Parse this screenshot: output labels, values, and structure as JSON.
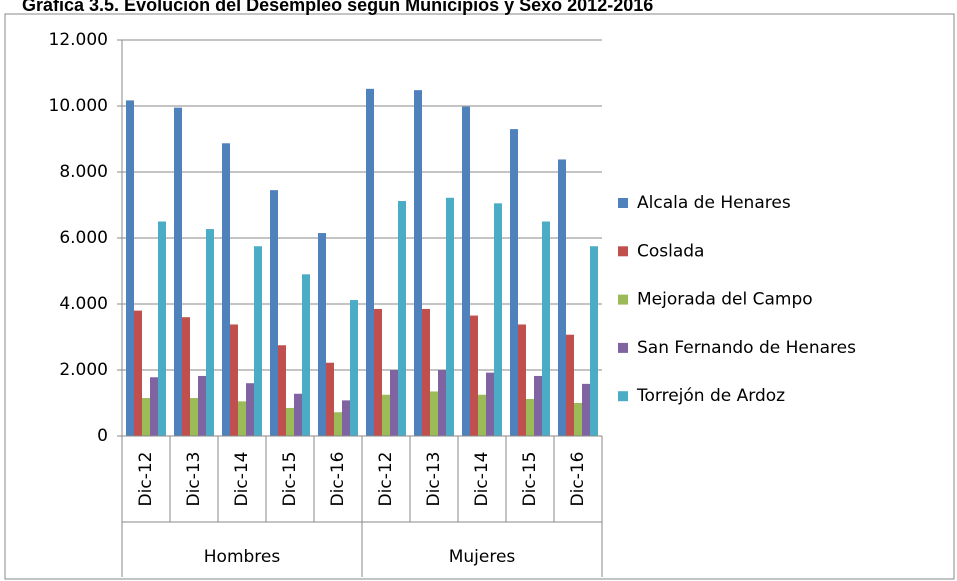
{
  "chart_data": {
    "type": "bar",
    "title": "Gráfica 3.5. Evolución del Desempleo según Municipios y Sexo 2012-2016",
    "categories": [
      "Dic-12",
      "Dic-13",
      "Dic-14",
      "Dic-15",
      "Dic-16",
      "Dic-12",
      "Dic-13",
      "Dic-14",
      "Dic-15",
      "Dic-16"
    ],
    "groups": [
      "Hombres",
      "Mujeres"
    ],
    "series": [
      {
        "name": "Alcala de Henares",
        "color": "#4f81bd",
        "values": [
          10170,
          9950,
          8870,
          7450,
          6150,
          10520,
          10480,
          9980,
          9300,
          8380
        ]
      },
      {
        "name": "Coslada",
        "color": "#c0504d",
        "values": [
          3800,
          3600,
          3380,
          2750,
          2220,
          3850,
          3850,
          3650,
          3380,
          3070
        ]
      },
      {
        "name": "Mejorada del Campo",
        "color": "#9bbb59",
        "values": [
          1150,
          1150,
          1050,
          850,
          720,
          1250,
          1350,
          1250,
          1120,
          1000
        ]
      },
      {
        "name": "San Fernando de Henares",
        "color": "#8064a2",
        "values": [
          1780,
          1820,
          1600,
          1280,
          1080,
          2000,
          2000,
          1920,
          1820,
          1580
        ]
      },
      {
        "name": "Torrejón de Ardoz",
        "color": "#4bacc6",
        "values": [
          6500,
          6270,
          5750,
          4900,
          4120,
          7120,
          7220,
          7050,
          6500,
          5750
        ]
      }
    ],
    "ylim": [
      0,
      12000
    ],
    "yticks": [
      0,
      {
        "value": 2000,
        "label": "2.000"
      },
      {
        "value": 4000,
        "label": "4.000"
      },
      {
        "value": 6000,
        "label": "6.000"
      },
      {
        "value": 8000,
        "label": "8.000"
      },
      {
        "value": 10000,
        "label": "10.000"
      },
      {
        "value": 12000,
        "label": "12.000"
      }
    ],
    "grid": true,
    "legend": "right"
  }
}
